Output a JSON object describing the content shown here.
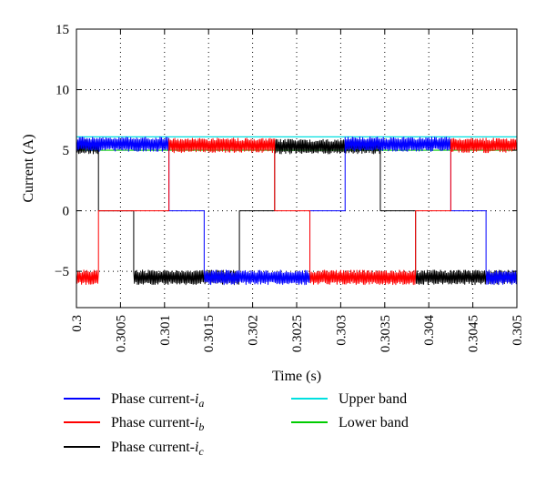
{
  "chart_data": {
    "type": "line",
    "title": "",
    "xlabel": "Time (s)",
    "ylabel": "Current (A)",
    "xlim": [
      0.3,
      0.305
    ],
    "ylim": [
      -8,
      15
    ],
    "x_ticks": [
      0.3,
      0.3005,
      0.301,
      0.3015,
      0.302,
      0.3025,
      0.303,
      0.3035,
      0.304,
      0.3045,
      0.305
    ],
    "x_tick_labels": [
      "0.3",
      "0.3005",
      "0.301",
      "0.3015",
      "0.302",
      "0.3025",
      "0.303",
      "0.3035",
      "0.304",
      "0.3045",
      "0.305"
    ],
    "y_ticks": [
      -5,
      0,
      5,
      10,
      15
    ],
    "y_tick_labels": [
      "−5",
      "0",
      "5",
      "10",
      "15"
    ],
    "grid": true,
    "grid_style": "dotted",
    "legend_position": "bottom",
    "phase_switch_times": [
      0.30025,
      0.30065,
      0.30105,
      0.30145,
      0.30185,
      0.30225,
      0.30265,
      0.30305,
      0.30345,
      0.30385,
      0.30425,
      0.30465
    ],
    "series": [
      {
        "name": "Phase current-i",
        "subscript": "a",
        "color": "#0000ff",
        "states": [
          "pos",
          "pos",
          "pos",
          "zero",
          "neg",
          "neg",
          "neg",
          "zero",
          "pos",
          "pos",
          "pos",
          "zero",
          "neg"
        ],
        "positive_mean": 5.5,
        "negative_mean": -5.5,
        "ripple_amplitude": 0.6
      },
      {
        "name": "Phase current-i",
        "subscript": "b",
        "color": "#ff0000",
        "states": [
          "neg",
          "zero",
          "zero",
          "pos",
          "pos",
          "pos",
          "zero",
          "neg",
          "neg",
          "neg",
          "zero",
          "pos",
          "pos"
        ],
        "positive_mean": 5.4,
        "negative_mean": -5.5,
        "ripple_amplitude": 0.6
      },
      {
        "name": "Phase current-i",
        "subscript": "c",
        "color": "#000000",
        "states": [
          "pos",
          "zero",
          "neg",
          "neg",
          "neg",
          "zero",
          "pos",
          "pos",
          "pos",
          "zero",
          "neg",
          "neg",
          "neg"
        ],
        "positive_mean": 5.3,
        "negative_mean": -5.5,
        "ripple_amplitude": 0.6
      },
      {
        "name": "Upper band",
        "color": "#00e0e0",
        "value": 6.1
      },
      {
        "name": "Lower band",
        "color": "#00cc00",
        "value": 5.0
      }
    ]
  }
}
